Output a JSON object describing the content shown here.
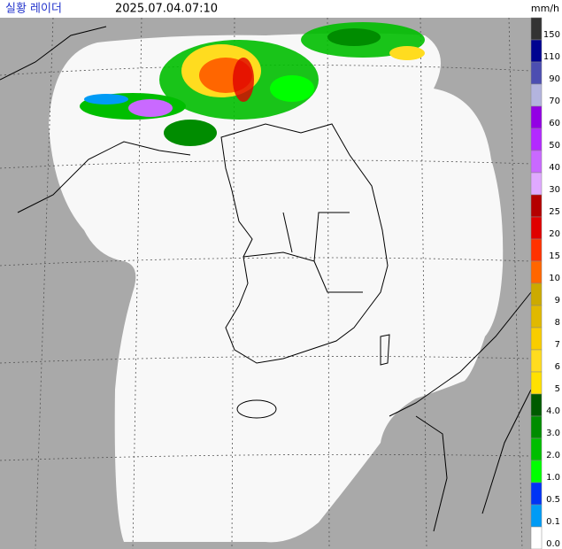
{
  "header": {
    "title": "실황 레이더",
    "timestamp": "2025.07.04.07:10",
    "unit": "mm/h"
  },
  "legend": {
    "items": [
      {
        "label": "150",
        "color": "#333333"
      },
      {
        "label": "110",
        "color": "#000390"
      },
      {
        "label": "90",
        "color": "#4c4eb1"
      },
      {
        "label": "70",
        "color": "#b3b4de"
      },
      {
        "label": "60",
        "color": "#9300e4"
      },
      {
        "label": "50",
        "color": "#b329ff"
      },
      {
        "label": "40",
        "color": "#c969ff"
      },
      {
        "label": "30",
        "color": "#e0a9ff"
      },
      {
        "label": "25",
        "color": "#b40000"
      },
      {
        "label": "20",
        "color": "#e00000"
      },
      {
        "label": "15",
        "color": "#ff3200"
      },
      {
        "label": "10",
        "color": "#ff6600"
      },
      {
        "label": "9",
        "color": "#ccaa00"
      },
      {
        "label": "8",
        "color": "#e0b900"
      },
      {
        "label": "7",
        "color": "#f9cd00"
      },
      {
        "label": "6",
        "color": "#ffdc1f"
      },
      {
        "label": "5",
        "color": "#ffe100"
      },
      {
        "label": "4.0",
        "color": "#005a00"
      },
      {
        "label": "3.0",
        "color": "#008c00"
      },
      {
        "label": "2.0",
        "color": "#00be00"
      },
      {
        "label": "1.0",
        "color": "#00ff00"
      },
      {
        "label": "0.5",
        "color": "#0033f5"
      },
      {
        "label": "0.1",
        "color": "#009bf5"
      },
      {
        "label": "0.0",
        "color": "#ffffff"
      }
    ]
  }
}
